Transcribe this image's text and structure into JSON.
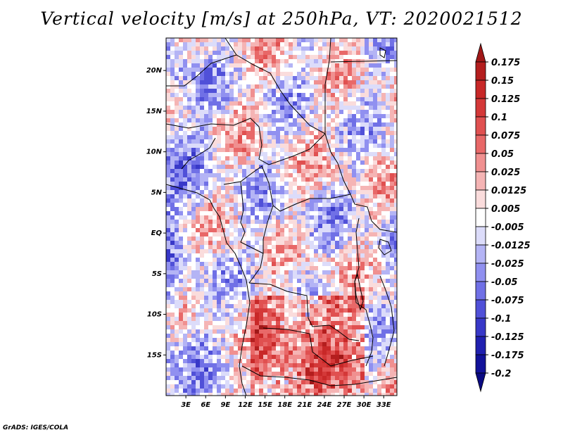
{
  "title": "Vertical velocity [m/s] at 250hPa, VT: 2020021512",
  "credit": "GrADS: IGES/COLA",
  "map": {
    "lon_range": [
      0,
      35
    ],
    "lat_range": [
      -20,
      24
    ],
    "lat_ticks": [
      {
        "value": 20,
        "label": "20N"
      },
      {
        "value": 15,
        "label": "15N"
      },
      {
        "value": 10,
        "label": "10N"
      },
      {
        "value": 5,
        "label": "5N"
      },
      {
        "value": 0,
        "label": "EQ"
      },
      {
        "value": -5,
        "label": "5S"
      },
      {
        "value": -10,
        "label": "10S"
      },
      {
        "value": -15,
        "label": "15S"
      }
    ],
    "lon_ticks": [
      {
        "value": 3,
        "label": "3E"
      },
      {
        "value": 6,
        "label": "6E"
      },
      {
        "value": 9,
        "label": "9E"
      },
      {
        "value": 12,
        "label": "12E"
      },
      {
        "value": 15,
        "label": "15E"
      },
      {
        "value": 18,
        "label": "18E"
      },
      {
        "value": 21,
        "label": "21E"
      },
      {
        "value": 24,
        "label": "24E"
      },
      {
        "value": 27,
        "label": "27E"
      },
      {
        "value": 30,
        "label": "30E"
      },
      {
        "value": 33,
        "label": "33E"
      }
    ]
  },
  "colorbar": {
    "labels": [
      "0.175",
      "0.15",
      "0.125",
      "0.1",
      "0.075",
      "0.05",
      "0.025",
      "0.0125",
      "0.005",
      "-0.005",
      "-0.0125",
      "-0.025",
      "-0.05",
      "-0.075",
      "-0.1",
      "-0.125",
      "-0.175",
      "-0.2"
    ],
    "colors": [
      "#a01818",
      "#b41e1e",
      "#c82828",
      "#d43838",
      "#e05050",
      "#e86868",
      "#f09090",
      "#f5b4b4",
      "#fadcdc",
      "#ffffff",
      "#dcdcfa",
      "#b4b4f5",
      "#9090f0",
      "#7070e6",
      "#5050d8",
      "#3838c8",
      "#2020b0",
      "#12129a",
      "#0a0a82"
    ]
  },
  "chart_data": {
    "type": "heatmap",
    "title": "Vertical velocity [m/s] at 250hPa, VT: 2020021512",
    "variable": "Vertical velocity",
    "units": "m/s",
    "level": "250hPa",
    "valid_time": "2020021512",
    "x_range": [
      0,
      35
    ],
    "y_range": [
      -20,
      24
    ],
    "contour_levels": [
      -0.2,
      -0.175,
      -0.125,
      -0.1,
      -0.075,
      -0.05,
      -0.025,
      -0.0125,
      -0.005,
      0.005,
      0.0125,
      0.025,
      0.05,
      0.075,
      0.1,
      0.125,
      0.15,
      0.175
    ]
  }
}
